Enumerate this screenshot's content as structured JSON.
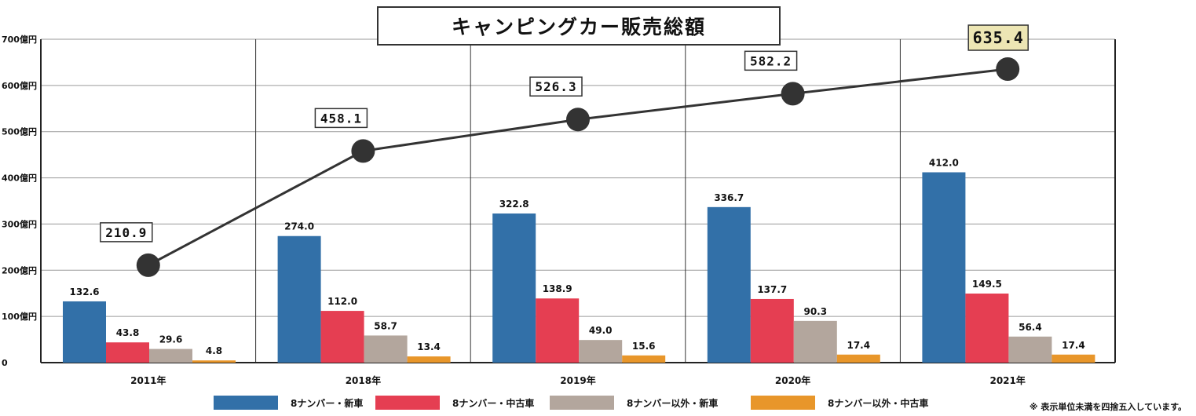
{
  "chart_data": {
    "type": "bar+line",
    "title": "キャンピングカー販売総額",
    "categories": [
      "2011年",
      "2018年",
      "2019年",
      "2020年",
      "2021年"
    ],
    "y_unit_ticks": [
      "0",
      "100億円",
      "200億円",
      "300億円",
      "400億円",
      "500億円",
      "600億円",
      "700億円"
    ],
    "ylim": [
      0,
      700
    ],
    "series": [
      {
        "name": "8ナンバー・新車",
        "color": "#3270a8",
        "values": [
          132.6,
          274.0,
          322.8,
          336.7,
          412.0
        ],
        "labels": [
          "132.6",
          "274.0",
          "322.8",
          "336.7",
          "412.0"
        ]
      },
      {
        "name": "8ナンバー・中古車",
        "color": "#e53e52",
        "values": [
          43.8,
          112.0,
          138.9,
          137.7,
          149.5
        ],
        "labels": [
          "43.8",
          "112.0",
          "138.9",
          "137.7",
          "149.5"
        ]
      },
      {
        "name": "8ナンバー以外・新車",
        "color": "#b3a69d",
        "values": [
          29.6,
          58.7,
          49.0,
          90.3,
          56.4
        ],
        "labels": [
          "29.6",
          "58.7",
          "49.0",
          "90.3",
          "56.4"
        ]
      },
      {
        "name": "8ナンバー以外・中古車",
        "color": "#e8962a",
        "values": [
          4.8,
          13.4,
          15.6,
          17.4,
          17.4
        ],
        "labels": [
          "4.8",
          "13.4",
          "15.6",
          "17.4",
          "17.4"
        ]
      }
    ],
    "total": {
      "name": "販売総額",
      "values": [
        210.9,
        458.1,
        526.3,
        582.2,
        635.4
      ],
      "labels": [
        "210.9",
        "458.1",
        "526.3",
        "582.2",
        "635.4"
      ],
      "highlight_color": "#ede6b4"
    },
    "grid": true
  },
  "note": "※ 表示単位未満を四捨五入しています。"
}
